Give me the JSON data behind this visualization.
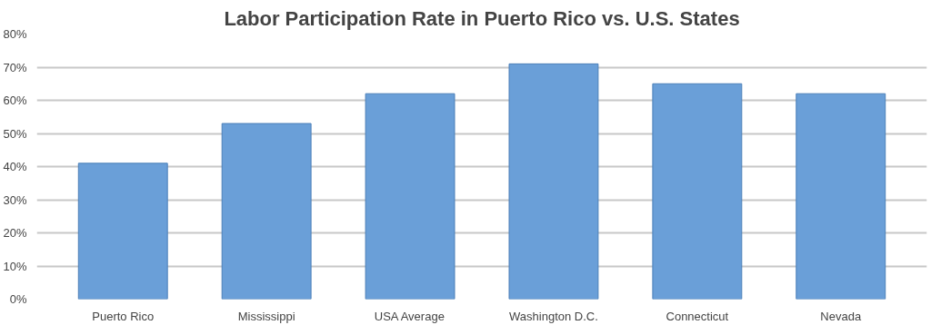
{
  "chart_data": {
    "type": "bar",
    "title": "Labor Participation Rate in Puerto Rico vs. U.S. States",
    "categories": [
      "Puerto Rico",
      "Mississippi",
      "USA Average",
      "Washington D.C.",
      "Connecticut",
      "Nevada"
    ],
    "values": [
      41,
      53,
      62,
      71,
      65,
      62
    ],
    "color": "#6a9fd8",
    "ylim": [
      0,
      80
    ],
    "yticks": [
      {
        "value": 0,
        "label": "0%"
      },
      {
        "value": 10,
        "label": "10%"
      },
      {
        "value": 20,
        "label": "20%"
      },
      {
        "value": 30,
        "label": "30%"
      },
      {
        "value": 40,
        "label": "40%"
      },
      {
        "value": 50,
        "label": "50%"
      },
      {
        "value": 60,
        "label": "60%"
      },
      {
        "value": 70,
        "label": "70%"
      },
      {
        "value": 80,
        "label": "80%"
      }
    ],
    "grid": "y"
  }
}
